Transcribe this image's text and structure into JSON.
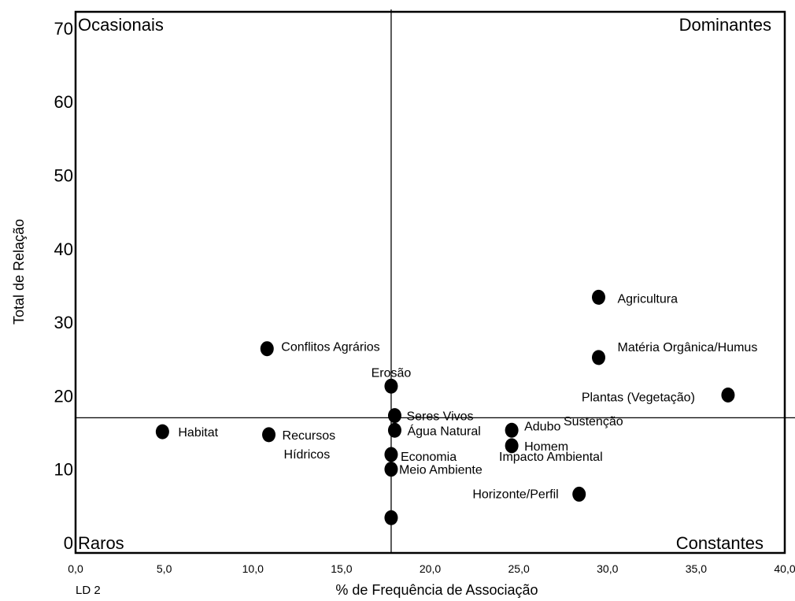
{
  "chart_data": {
    "type": "scatter",
    "xlabel": "% de Frequência de Associação",
    "ylabel": "Total de Relação",
    "corner_label": "LD 2",
    "xlim": [
      0,
      40
    ],
    "ylim": [
      0,
      72
    ],
    "x_ticks": [
      "0,0",
      "5,0",
      "10,0",
      "15,0",
      "20,0",
      "25,0",
      "30,0",
      "35,0",
      "40,0"
    ],
    "y_ticks": [
      "0",
      "10",
      "20",
      "30",
      "40",
      "50",
      "60",
      "70"
    ],
    "reference_lines": {
      "x": 17.8,
      "y": 17
    },
    "quadrants": {
      "top_left": "Ocasionais",
      "top_right": "Dominantes",
      "bottom_left": "Raros",
      "bottom_right": "Constantes"
    },
    "points": [
      {
        "label": "Agricultura",
        "x": 29.5,
        "y": 33.4
      },
      {
        "label": "Matéria Orgânica/Humus",
        "x": 29.5,
        "y": 25.2
      },
      {
        "label": "Plantas (Vegetação)",
        "x": 36.8,
        "y": 20.1
      },
      {
        "label": "Conflitos Agrários",
        "x": 10.8,
        "y": 26.4
      },
      {
        "label": "Erosão",
        "x": 17.8,
        "y": 21.3
      },
      {
        "label": "Seres Vivos",
        "x": 18.0,
        "y": 17.3
      },
      {
        "label": "Água Natural",
        "x": 18.0,
        "y": 15.3
      },
      {
        "label": "Adubo",
        "x": 24.6,
        "y": 15.3
      },
      {
        "label": "Sustenção",
        "x": null,
        "y": null
      },
      {
        "label": "Habitat",
        "x": 4.9,
        "y": 15.1
      },
      {
        "label": "Recursos Hídricos",
        "x": 10.9,
        "y": 14.7
      },
      {
        "label": "Homem",
        "x": 24.6,
        "y": 13.2
      },
      {
        "label": "Impacto Ambiental",
        "x": null,
        "y": null
      },
      {
        "label": "Economia",
        "x": 17.8,
        "y": 12.0
      },
      {
        "label": "Meio Ambiente",
        "x": 17.8,
        "y": 10.0
      },
      {
        "label": "Horizonte/Perfil",
        "x": 28.4,
        "y": 6.6
      },
      {
        "label": "",
        "x": 17.8,
        "y": 3.4
      }
    ]
  }
}
